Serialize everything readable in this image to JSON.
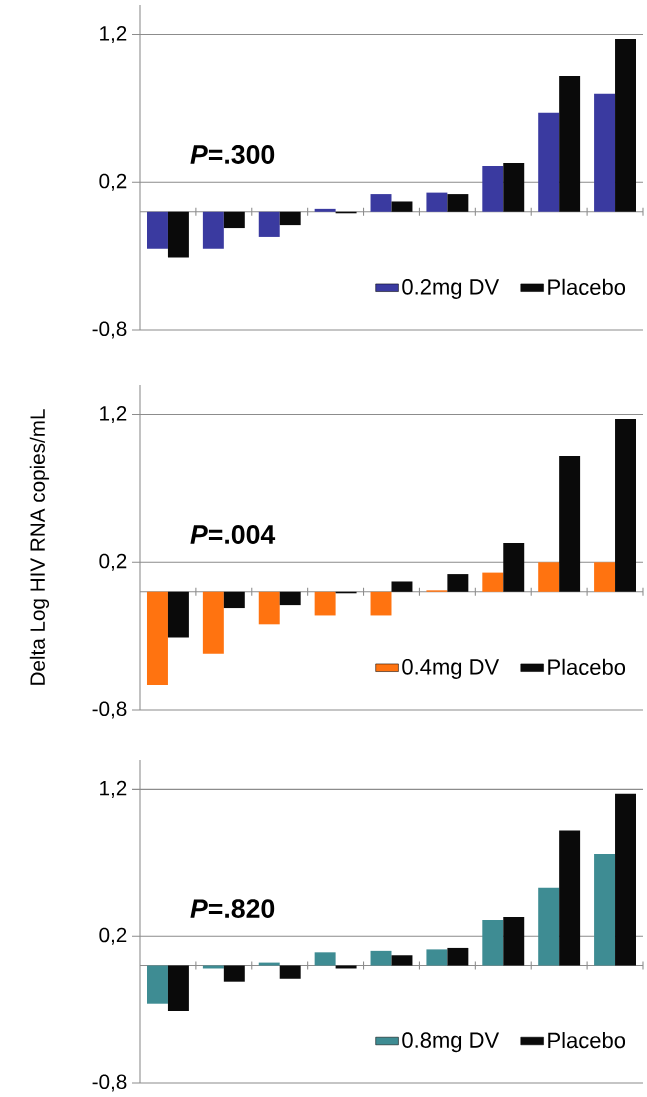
{
  "chart_data": [
    {
      "type": "bar",
      "annotations": [
        "*P*=.300"
      ],
      "categories": [
        null,
        null,
        null,
        null,
        null,
        null,
        null,
        null,
        null
      ],
      "series": [
        {
          "name": "0.2mg DV",
          "color": "#3a3aa0",
          "values": [
            -0.25,
            -0.25,
            -0.17,
            0.02,
            0.12,
            0.13,
            0.31,
            0.67,
            0.8
          ]
        },
        {
          "name": "Placebo",
          "color": "#0a0a0a",
          "values": [
            -0.31,
            -0.11,
            -0.09,
            -0.01,
            0.07,
            0.12,
            0.33,
            0.92,
            1.17
          ]
        }
      ],
      "ylim": [
        -0.8,
        1.4
      ],
      "yticks": [
        {
          "value": -0.8,
          "label": "-0,8"
        },
        {
          "value": 0.2,
          "label": "0,2"
        },
        {
          "value": 1.2,
          "label": "1,2"
        }
      ],
      "grid": "y",
      "legend": "bottom right",
      "tick_labels": "y"
    },
    {
      "type": "bar",
      "ylabel": "Delta Log HIV RNA copies/mL",
      "annotations": [
        "*P*=.004"
      ],
      "categories": [
        null,
        null,
        null,
        null,
        null,
        null,
        null,
        null,
        null
      ],
      "series": [
        {
          "name": "0.4mg DV",
          "color": "#ff7310",
          "values": [
            -0.63,
            -0.42,
            -0.22,
            -0.16,
            -0.16,
            0.01,
            0.13,
            0.2,
            0.2
          ]
        },
        {
          "name": "Placebo",
          "color": "#0a0a0a",
          "values": [
            -0.31,
            -0.11,
            -0.09,
            -0.01,
            0.07,
            0.12,
            0.33,
            0.92,
            1.17
          ]
        }
      ],
      "ylim": [
        -0.8,
        1.4
      ],
      "yticks": [
        {
          "value": -0.8,
          "label": "-0,8"
        },
        {
          "value": 0.2,
          "label": "0,2"
        },
        {
          "value": 1.2,
          "label": "1,2"
        }
      ],
      "grid": "y",
      "legend": "bottom right",
      "tick_labels": "y"
    },
    {
      "type": "bar",
      "annotations": [
        "*P*=.820"
      ],
      "categories": [
        null,
        null,
        null,
        null,
        null,
        null,
        null,
        null,
        null
      ],
      "series": [
        {
          "name": "0.8mg DV",
          "color": "#3e8c93",
          "values": [
            -0.26,
            -0.02,
            0.02,
            0.09,
            0.1,
            0.11,
            0.31,
            0.53,
            0.76
          ]
        },
        {
          "name": "Placebo",
          "color": "#0a0a0a",
          "values": [
            -0.31,
            -0.11,
            -0.09,
            -0.02,
            0.07,
            0.12,
            0.33,
            0.92,
            1.17
          ]
        }
      ],
      "ylim": [
        -0.8,
        1.4
      ],
      "yticks": [
        {
          "value": -0.8,
          "label": "-0,8"
        },
        {
          "value": 0.2,
          "label": "0,2"
        },
        {
          "value": 1.2,
          "label": "1,2"
        }
      ],
      "grid": "y",
      "legend": "bottom right",
      "tick_labels": "y"
    }
  ]
}
